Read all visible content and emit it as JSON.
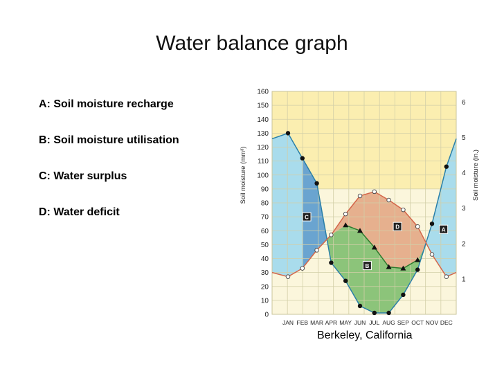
{
  "slide": {
    "title": "Water balance graph",
    "legend": [
      "A: Soil moisture recharge",
      "B: Soil moisture utilisation",
      "C: Water surplus",
      "D: Water deficit"
    ]
  },
  "chart_data": {
    "type": "line",
    "title": "",
    "subtitle": "Berkeley, California",
    "ylabel_left": "Soil moisture (mm³)",
    "ylabel_right": "Soil moisture (in.)",
    "xlabel": "",
    "categories": [
      "JAN",
      "FEB",
      "MAR",
      "APR",
      "MAY",
      "JUN",
      "JUL",
      "AUG",
      "SEP",
      "OCT",
      "NOV",
      "DEC"
    ],
    "ylim": [
      0,
      160
    ],
    "yticks_left": [
      0,
      10,
      20,
      30,
      40,
      50,
      60,
      70,
      80,
      90,
      100,
      110,
      120,
      130,
      140,
      150,
      160
    ],
    "yticks_right": [
      "1",
      "2",
      "3",
      "4",
      "5",
      "6"
    ],
    "grid": true,
    "series": [
      {
        "values": [
          130,
          112,
          94,
          37,
          24,
          6,
          1,
          1,
          14,
          32,
          65,
          106
        ],
        "color": "#2a7fa8",
        "marker": "circle-filled"
      },
      {
        "values": [
          27,
          33,
          46,
          57,
          72,
          85,
          88,
          82,
          75,
          63,
          43,
          27
        ],
        "color": "#d4664a",
        "marker": "circle-open"
      },
      {
        "values": [
          null,
          null,
          null,
          null,
          64,
          60,
          48,
          34,
          33,
          39,
          null,
          null
        ],
        "color": "#2e7a2e",
        "marker": "triangle"
      }
    ],
    "regions": [
      {
        "label": "C",
        "fill": "#6aa4d0"
      },
      {
        "label": "B",
        "fill": "#8cc47a"
      },
      {
        "label": "D",
        "fill": "#e6b08e"
      },
      {
        "label": "A",
        "fill": "#a9dcec"
      }
    ],
    "colors": {
      "top_band": "#fbeeb0",
      "bottom_band": "#fbf6dc",
      "grid": "#d2cfa8"
    }
  }
}
